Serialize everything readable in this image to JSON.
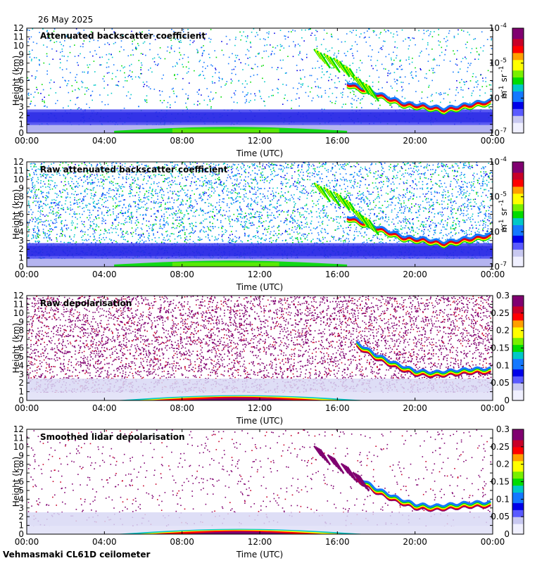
{
  "header": {
    "date": "26 May 2025"
  },
  "footer": {
    "label": "Vehmasmaki CL61D ceilometer"
  },
  "colors": {
    "background": "#ffffff",
    "colormap": [
      "#f0f0ff",
      "#c8c8f0",
      "#5a5aff",
      "#0000e8",
      "#1478ff",
      "#00c8c8",
      "#00dc00",
      "#78f000",
      "#ffff00",
      "#ffa000",
      "#ff0000",
      "#c80028",
      "#800070"
    ]
  },
  "chart_data": [
    {
      "type": "heatmap",
      "title": "Attenuated backscatter coefficient",
      "xlabel": "Time (UTC)",
      "ylabel": "Height (km)",
      "xticks": [
        "00:00",
        "04:00",
        "08:00",
        "12:00",
        "16:00",
        "20:00",
        "00:00"
      ],
      "yticks": [
        "0",
        "1",
        "2",
        "3",
        "4",
        "5",
        "6",
        "7",
        "8",
        "9",
        "10",
        "11",
        "12"
      ],
      "ylim": [
        0,
        12
      ],
      "xlim_hours": [
        0,
        24
      ],
      "colorbar": {
        "scale": "log",
        "ticks": [
          {
            "b": "10",
            "e": "-7"
          },
          {
            "b": "10",
            "e": "-6"
          },
          {
            "b": "10",
            "e": "-5"
          },
          {
            "b": "10",
            "e": "-4"
          }
        ],
        "unit": {
          "m": "m",
          "m_exp": "-1",
          "sr": "sr",
          "sr_exp": "-1"
        }
      },
      "features": {
        "noise": "sparse",
        "boundary_layer_top_km": 2.7,
        "surface_layer": "green",
        "cloud_layer": [
          [
            16.5,
            5.6
          ],
          [
            17.5,
            4.8
          ],
          [
            18.5,
            4.0
          ],
          [
            19.5,
            3.2
          ],
          [
            20.5,
            3.0
          ],
          [
            21.5,
            2.6
          ],
          [
            22.5,
            3.0
          ],
          [
            23.5,
            3.4
          ],
          [
            24,
            3.5
          ]
        ],
        "falling_streaks": [
          [
            14.8,
            9.0
          ],
          [
            15.3,
            8.5
          ],
          [
            15.8,
            8.0
          ],
          [
            16.3,
            7.2
          ],
          [
            16.8,
            6.0
          ],
          [
            17.3,
            5.2
          ]
        ]
      }
    },
    {
      "type": "heatmap",
      "title": "Raw attenuated backscatter coefficient",
      "xlabel": "Time (UTC)",
      "ylabel": "Height (km)",
      "xticks": [
        "00:00",
        "04:00",
        "08:00",
        "12:00",
        "16:00",
        "20:00",
        "00:00"
      ],
      "yticks": [
        "0",
        "1",
        "2",
        "3",
        "4",
        "5",
        "6",
        "7",
        "8",
        "9",
        "10",
        "11",
        "12"
      ],
      "ylim": [
        0,
        12
      ],
      "xlim_hours": [
        0,
        24
      ],
      "colorbar": {
        "scale": "log",
        "ticks": [
          {
            "b": "10",
            "e": "-7"
          },
          {
            "b": "10",
            "e": "-6"
          },
          {
            "b": "10",
            "e": "-5"
          },
          {
            "b": "10",
            "e": "-4"
          }
        ],
        "unit": {
          "m": "m",
          "m_exp": "-1",
          "sr": "sr",
          "sr_exp": "-1"
        }
      },
      "features": {
        "noise": "dense",
        "boundary_layer_top_km": 2.7,
        "surface_layer": "green",
        "cloud_layer": [
          [
            16.5,
            5.6
          ],
          [
            17.5,
            4.8
          ],
          [
            18.5,
            4.0
          ],
          [
            19.5,
            3.2
          ],
          [
            20.5,
            3.0
          ],
          [
            21.5,
            2.6
          ],
          [
            22.5,
            3.0
          ],
          [
            23.5,
            3.4
          ],
          [
            24,
            3.5
          ]
        ],
        "falling_streaks": [
          [
            14.8,
            9.0
          ],
          [
            15.3,
            8.5
          ],
          [
            15.8,
            8.0
          ],
          [
            16.3,
            7.2
          ],
          [
            16.8,
            6.0
          ],
          [
            17.3,
            5.2
          ]
        ]
      }
    },
    {
      "type": "heatmap",
      "title": "Raw depolarisation",
      "xlabel": "Time (UTC)",
      "ylabel": "Height (km)",
      "xticks": [
        "00:00",
        "04:00",
        "08:00",
        "12:00",
        "16:00",
        "20:00",
        "00:00"
      ],
      "yticks": [
        "0",
        "1",
        "2",
        "3",
        "4",
        "5",
        "6",
        "7",
        "8",
        "9",
        "10",
        "11",
        "12"
      ],
      "ylim": [
        0,
        12
      ],
      "xlim_hours": [
        0,
        24
      ],
      "colorbar": {
        "scale": "linear",
        "ticks": [
          "0",
          "0.05",
          "0.1",
          "0.15",
          "0.2",
          "0.25",
          "0.3"
        ]
      },
      "features": {
        "noise": "depol-dense",
        "boundary_layer_top_km": 2.5,
        "surface_layer": "depol",
        "cloud_layer": [
          [
            17.0,
            6.4
          ],
          [
            18.0,
            5.0
          ],
          [
            19.0,
            4.0
          ],
          [
            20.0,
            3.2
          ],
          [
            21.0,
            3.0
          ],
          [
            22.0,
            3.2
          ],
          [
            23.0,
            3.4
          ],
          [
            24,
            3.4
          ]
        ],
        "falling_streaks": []
      }
    },
    {
      "type": "heatmap",
      "title": "Smoothed lidar depolarisation",
      "xlabel": "Time (UTC)",
      "ylabel": "Height (km)",
      "xticks": [
        "00:00",
        "04:00",
        "08:00",
        "12:00",
        "16:00",
        "20:00",
        "00:00"
      ],
      "yticks": [
        "0",
        "1",
        "2",
        "3",
        "4",
        "5",
        "6",
        "7",
        "8",
        "9",
        "10",
        "11",
        "12"
      ],
      "ylim": [
        0,
        12
      ],
      "xlim_hours": [
        0,
        24
      ],
      "colorbar": {
        "scale": "linear",
        "ticks": [
          "0",
          "0.05",
          "0.1",
          "0.15",
          "0.2",
          "0.25",
          "0.3"
        ]
      },
      "features": {
        "noise": "depol-sparse",
        "boundary_layer_top_km": 2.5,
        "surface_layer": "depol",
        "cloud_layer": [
          [
            17.0,
            6.4
          ],
          [
            18.0,
            5.0
          ],
          [
            19.0,
            4.0
          ],
          [
            20.0,
            3.2
          ],
          [
            21.0,
            3.0
          ],
          [
            22.0,
            3.2
          ],
          [
            23.0,
            3.4
          ],
          [
            24,
            3.4
          ]
        ],
        "falling_streaks": [
          [
            14.8,
            9.5
          ],
          [
            15.5,
            8.5
          ],
          [
            16.2,
            7.5
          ],
          [
            16.8,
            6.5
          ]
        ]
      }
    }
  ]
}
